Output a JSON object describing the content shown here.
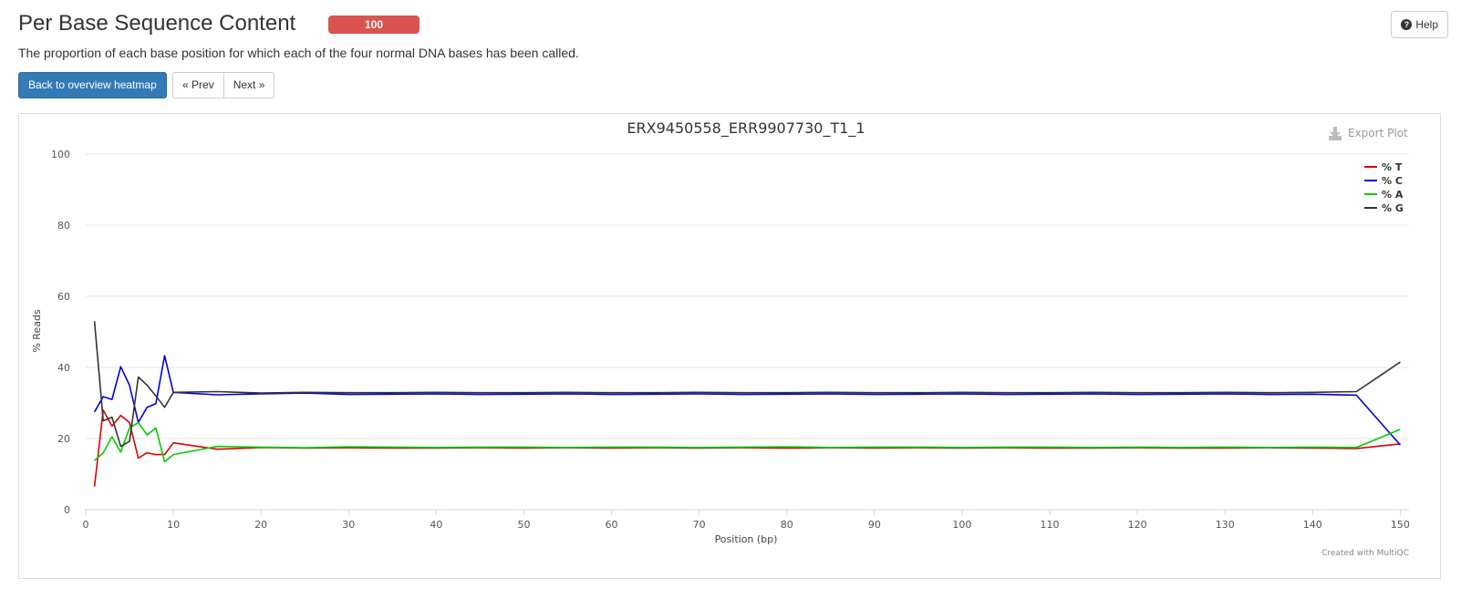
{
  "header": {
    "title": "Per Base Sequence Content",
    "badge": "100",
    "help_label": "Help",
    "description": "The proportion of each base position for which each of the four normal DNA bases has been called."
  },
  "nav": {
    "back_label": "Back to overview heatmap",
    "prev_label": "« Prev",
    "next_label": "Next »"
  },
  "plot": {
    "export_label": "Export Plot",
    "credit": "Created with MultiQC"
  },
  "colors": {
    "T": "#dd0000",
    "C": "#0000dd",
    "A": "#00cc00",
    "G": "#333333",
    "badge": "#d9534f",
    "primary": "#337ab7"
  },
  "chart_data": {
    "type": "line",
    "title": "ERX9450558_ERR9907730_T1_1",
    "xlabel": "Position (bp)",
    "ylabel": "% Reads",
    "xlim": [
      0,
      151
    ],
    "ylim": [
      0,
      100
    ],
    "xticks": [
      0,
      10,
      20,
      30,
      40,
      50,
      60,
      70,
      80,
      90,
      100,
      110,
      120,
      130,
      140,
      150
    ],
    "yticks": [
      0,
      20,
      40,
      60,
      80,
      100
    ],
    "legend_position": "top-right",
    "grid": true,
    "x": [
      1,
      2,
      3,
      4,
      5,
      6,
      7,
      8,
      9,
      10,
      15,
      20,
      25,
      30,
      35,
      40,
      45,
      50,
      55,
      60,
      65,
      70,
      75,
      80,
      85,
      90,
      95,
      100,
      105,
      110,
      115,
      120,
      125,
      130,
      135,
      140,
      145,
      150
    ],
    "series": [
      {
        "name": "% T",
        "color": "#dd0000",
        "values": [
          6.5,
          28,
          23.5,
          26.5,
          24.5,
          14.5,
          16,
          15.5,
          15.5,
          18.8,
          17,
          17.5,
          17.3,
          17.4,
          17.3,
          17.3,
          17.4,
          17.3,
          17.4,
          17.3,
          17.4,
          17.3,
          17.4,
          17.3,
          17.4,
          17.3,
          17.4,
          17.3,
          17.4,
          17.3,
          17.3,
          17.4,
          17.3,
          17.3,
          17.4,
          17.3,
          17.2,
          18.5
        ]
      },
      {
        "name": "% C",
        "color": "#0000dd",
        "values": [
          27.5,
          31.8,
          31,
          40.2,
          35,
          24.5,
          28.8,
          29.8,
          43.3,
          33,
          32.3,
          32.6,
          32.8,
          32.4,
          32.5,
          32.6,
          32.4,
          32.5,
          32.6,
          32.4,
          32.5,
          32.6,
          32.4,
          32.5,
          32.6,
          32.4,
          32.5,
          32.6,
          32.4,
          32.5,
          32.6,
          32.4,
          32.5,
          32.6,
          32.4,
          32.5,
          32.2,
          18.2
        ]
      },
      {
        "name": "% A",
        "color": "#00cc00",
        "values": [
          13.8,
          16,
          20.5,
          16.2,
          23,
          24.5,
          21,
          23,
          13.5,
          15.5,
          17.8,
          17.6,
          17.4,
          17.7,
          17.6,
          17.5,
          17.6,
          17.6,
          17.5,
          17.6,
          17.6,
          17.5,
          17.6,
          17.7,
          17.5,
          17.6,
          17.6,
          17.5,
          17.6,
          17.6,
          17.5,
          17.6,
          17.5,
          17.6,
          17.5,
          17.6,
          17.5,
          22.6
        ]
      },
      {
        "name": "% G",
        "color": "#333333",
        "values": [
          53,
          25,
          26,
          17.8,
          19.2,
          37.3,
          35,
          32,
          28.8,
          33,
          33.2,
          32.8,
          33,
          32.9,
          32.9,
          33,
          32.9,
          32.9,
          33,
          32.9,
          32.9,
          33,
          32.9,
          32.9,
          33,
          32.9,
          32.9,
          33,
          32.9,
          32.9,
          33,
          32.9,
          32.9,
          33,
          32.9,
          33,
          33.2,
          41.5
        ]
      }
    ]
  }
}
